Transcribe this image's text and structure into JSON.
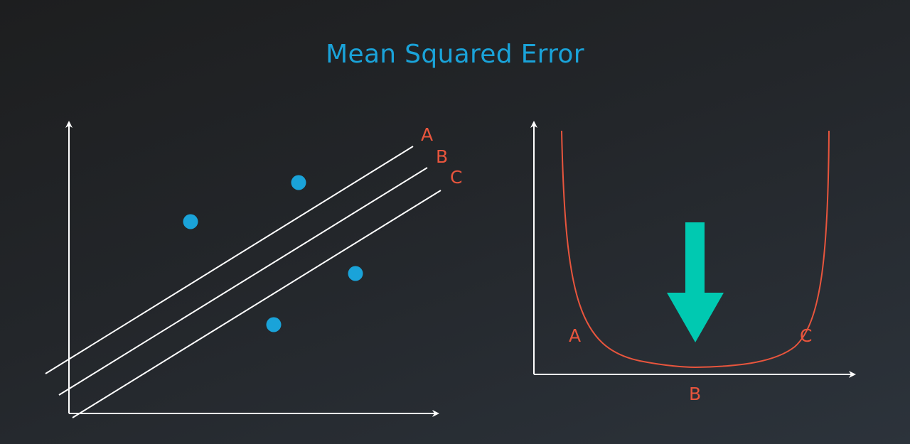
{
  "title": "Mean Squared Error",
  "colors": {
    "title": "#1aa3d9",
    "points": "#1aa3d9",
    "lines": "#ffffff",
    "curve": "#e8553d",
    "labels": "#e8553d",
    "arrow": "#00c9b1"
  },
  "left_panel": {
    "line_labels": [
      "A",
      "B",
      "C"
    ],
    "points_count": 4
  },
  "right_panel": {
    "curve_labels": {
      "left": "A",
      "bottom": "B",
      "right": "C"
    }
  }
}
